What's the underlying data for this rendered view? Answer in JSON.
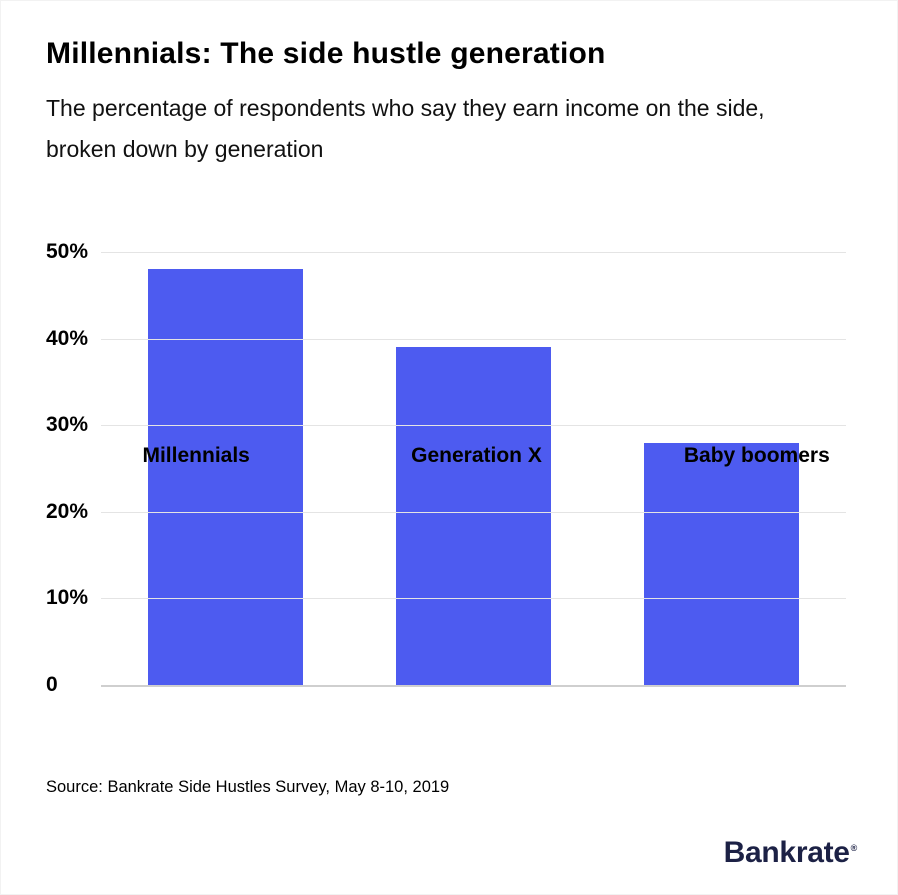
{
  "page": {
    "title": "Millennials: The side hustle generation",
    "subtitle": "The percentage of respondents who say they earn income on the side, broken down by generation",
    "source": "Source: Bankrate Side Hustles Survey, May 8-10, 2019",
    "brand": "Bankrate",
    "brand_mark": "®"
  },
  "colors": {
    "bar": "#4d5bf0",
    "gridline": "#e4e4e4",
    "baseline": "#cfcfcf",
    "brand_text": "#1c2145",
    "text": "#000000",
    "background": "#ffffff"
  },
  "chart_data": {
    "type": "bar",
    "categories": [
      "Millennials",
      "Generation X",
      "Baby boomers"
    ],
    "values": [
      48,
      39,
      28
    ],
    "title": "Millennials: The side hustle generation",
    "subtitle": "The percentage of respondents who say they earn income on the side, broken down by generation",
    "xlabel": "",
    "ylabel": "",
    "ylim": [
      0,
      50
    ],
    "yticks": [
      0,
      10,
      20,
      30,
      40,
      50
    ],
    "ytick_labels": [
      "0",
      "10%",
      "20%",
      "30%",
      "40%",
      "50%"
    ],
    "grid": "horizontal",
    "legend": "none",
    "bar_color": "#4d5bf0"
  }
}
